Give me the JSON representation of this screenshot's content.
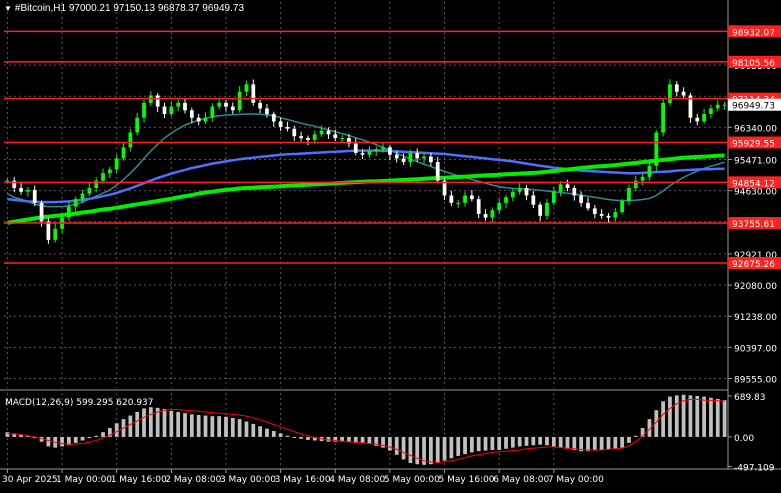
{
  "header": {
    "symbol": "#Bitcoin,H1",
    "ohlc": "97000.21 97150.13 96878.37 96949.73"
  },
  "colors": {
    "background": "#000000",
    "grid": "#5a5a5a",
    "bull": "#00ff00",
    "bear": "#ffffff",
    "level_line": "#ff2020",
    "ma_fast": "#2e8b8b",
    "ma_mid": "#4f6fff",
    "ma_slow": "#00ee00",
    "macd_hist": "#c0c0c0",
    "macd_signal": "#ff0000",
    "axis_text": "#ffffff",
    "current_price_bg": "#ffffff",
    "current_price_text": "#000000"
  },
  "chart_data": {
    "type": "candlestick",
    "title": "#Bitcoin,H1",
    "ylim": [
      89300,
      99400
    ],
    "y_ticks": [
      "98021.00",
      "97180.00",
      "96340.00",
      "95471.00",
      "94630.00",
      "93790.00",
      "92921.00",
      "92080.00",
      "91238.00",
      "90397.00",
      "89555.00"
    ],
    "x_labels": [
      "30 Apr 2025",
      "1 May 00:00",
      "1 May 16:00",
      "2 May 08:00",
      "3 May 00:00",
      "3 May 16:00",
      "4 May 08:00",
      "5 May 00:00",
      "5 May 16:00",
      "6 May 08:00",
      "7 May 00:00"
    ],
    "x_label_index": [
      0,
      8,
      16,
      24,
      32,
      40,
      48,
      56,
      64,
      72,
      80
    ],
    "levels": [
      {
        "label": "98932.07",
        "value": 98932.07
      },
      {
        "label": "98105.56",
        "value": 98105.56
      },
      {
        "label": "97114.34",
        "value": 97114.34
      },
      {
        "label": "95929.55",
        "value": 95929.55
      },
      {
        "label": "94854.12",
        "value": 94854.12
      },
      {
        "label": "93755.61",
        "value": 93755.61
      },
      {
        "label": "92675.26",
        "value": 92675.26
      }
    ],
    "current_price": {
      "label": "96949.73",
      "value": 96949.73
    },
    "closes": [
      94900,
      94700,
      94600,
      94650,
      94300,
      93800,
      93300,
      93600,
      93900,
      94200,
      94400,
      94550,
      94700,
      94900,
      95100,
      95200,
      95500,
      95800,
      96200,
      96600,
      97000,
      97200,
      96900,
      96700,
      96900,
      97000,
      96800,
      96600,
      96500,
      96600,
      96900,
      97000,
      96900,
      96800,
      97300,
      97500,
      97000,
      96850,
      96700,
      96500,
      96350,
      96300,
      96100,
      96050,
      96000,
      96150,
      96250,
      96150,
      96050,
      96050,
      95900,
      95650,
      95600,
      95700,
      95750,
      95800,
      95600,
      95500,
      95400,
      95650,
      95500,
      95550,
      95400,
      94900,
      94500,
      94300,
      94300,
      94500,
      94400,
      94000,
      93900,
      94100,
      94300,
      94450,
      94600,
      94700,
      94500,
      94250,
      93950,
      94300,
      94600,
      94800,
      94700,
      94500,
      94300,
      94150,
      94000,
      93950,
      93900,
      94050,
      94350,
      94700,
      94900,
      95000,
      95300,
      96200,
      97000,
      97500,
      97300,
      97200,
      96600,
      96500,
      96700,
      96850,
      96950,
      96950
    ],
    "ma_fast": [
      94550,
      94450,
      94400,
      94330,
      94270,
      94220,
      94200,
      94200,
      94200,
      94220,
      94260,
      94320,
      94400,
      94480,
      94560,
      94650,
      94780,
      94930,
      95100,
      95290,
      95500,
      95700,
      95880,
      96050,
      96180,
      96300,
      96400,
      96470,
      96530,
      96580,
      96620,
      96650,
      96670,
      96680,
      96690,
      96700,
      96700,
      96690,
      96680,
      96650,
      96600,
      96550,
      96500,
      96450,
      96410,
      96370,
      96320,
      96270,
      96220,
      96170,
      96120,
      96060,
      96000,
      95940,
      95870,
      95800,
      95720,
      95640,
      95560,
      95480,
      95410,
      95340,
      95280,
      95210,
      95150,
      95090,
      95030,
      94980,
      94930,
      94880,
      94830,
      94780,
      94740,
      94710,
      94690,
      94680,
      94670,
      94660,
      94640,
      94620,
      94600,
      94580,
      94560,
      94540,
      94510,
      94480,
      94450,
      94420,
      94390,
      94370,
      94360,
      94360,
      94370,
      94390,
      94420,
      94500,
      94620,
      94760,
      94880,
      94990,
      95080,
      95160,
      95230,
      95290,
      95340,
      95400
    ],
    "ma_mid": [
      94400,
      94380,
      94360,
      94340,
      94330,
      94320,
      94320,
      94320,
      94330,
      94340,
      94360,
      94380,
      94410,
      94440,
      94480,
      94520,
      94570,
      94630,
      94690,
      94760,
      94830,
      94900,
      94970,
      95030,
      95090,
      95140,
      95190,
      95240,
      95280,
      95320,
      95360,
      95390,
      95420,
      95450,
      95480,
      95500,
      95520,
      95540,
      95560,
      95580,
      95600,
      95610,
      95620,
      95630,
      95640,
      95650,
      95660,
      95670,
      95680,
      95690,
      95700,
      95710,
      95710,
      95710,
      95710,
      95710,
      95700,
      95690,
      95680,
      95670,
      95660,
      95650,
      95640,
      95630,
      95620,
      95600,
      95580,
      95560,
      95540,
      95520,
      95500,
      95480,
      95460,
      95440,
      95420,
      95390,
      95360,
      95330,
      95300,
      95280,
      95250,
      95230,
      95210,
      95190,
      95170,
      95160,
      95150,
      95140,
      95130,
      95120,
      95110,
      95100,
      95100,
      95110,
      95120,
      95130,
      95140,
      95150,
      95170,
      95180,
      95190,
      95200,
      95210,
      95210,
      95220,
      95220
    ],
    "ma_slow": [
      93760,
      93790,
      93820,
      93850,
      93880,
      93910,
      93930,
      93950,
      93970,
      93990,
      94010,
      94040,
      94060,
      94090,
      94120,
      94140,
      94170,
      94200,
      94230,
      94260,
      94290,
      94320,
      94350,
      94380,
      94410,
      94450,
      94480,
      94510,
      94550,
      94580,
      94600,
      94630,
      94650,
      94670,
      94690,
      94700,
      94710,
      94720,
      94730,
      94740,
      94750,
      94760,
      94770,
      94780,
      94790,
      94800,
      94810,
      94820,
      94830,
      94840,
      94850,
      94860,
      94870,
      94880,
      94880,
      94890,
      94900,
      94910,
      94920,
      94930,
      94940,
      94950,
      94960,
      94970,
      94980,
      94990,
      95000,
      95010,
      95020,
      95030,
      95040,
      95050,
      95060,
      95070,
      95080,
      95090,
      95100,
      95110,
      95120,
      95140,
      95160,
      95180,
      95200,
      95220,
      95240,
      95260,
      95280,
      95290,
      95300,
      95320,
      95340,
      95360,
      95380,
      95400,
      95420,
      95440,
      95460,
      95480,
      95500,
      95520,
      95530,
      95540,
      95550,
      95560,
      95570,
      95580
    ],
    "macd": {
      "label": "MACD(12,26,9) 599.295 620.937",
      "ylim": [
        -540,
        740
      ],
      "y_ticks": [
        "689.83",
        "0.00",
        "-497.109"
      ],
      "histogram": [
        80,
        60,
        40,
        20,
        -20,
        -80,
        -160,
        -180,
        -160,
        -140,
        -100,
        -60,
        -20,
        20,
        80,
        150,
        230,
        300,
        360,
        420,
        480,
        500,
        490,
        470,
        440,
        420,
        400,
        380,
        370,
        360,
        350,
        350,
        340,
        320,
        300,
        260,
        220,
        180,
        140,
        100,
        60,
        20,
        -10,
        -30,
        -50,
        -60,
        -70,
        -80,
        -80,
        -80,
        -90,
        -100,
        -110,
        -120,
        -150,
        -180,
        -230,
        -300,
        -380,
        -440,
        -460,
        -470,
        -460,
        -440,
        -400,
        -360,
        -320,
        -290,
        -260,
        -240,
        -230,
        -220,
        -220,
        -200,
        -180,
        -160,
        -150,
        -140,
        -130,
        -140,
        -160,
        -180,
        -200,
        -220,
        -240,
        -240,
        -230,
        -220,
        -210,
        -200,
        -180,
        -100,
        20,
        150,
        300,
        450,
        600,
        680,
        700,
        710,
        700,
        690,
        680,
        660,
        640,
        620
      ],
      "signal": [
        60,
        50,
        40,
        20,
        0,
        -30,
        -60,
        -90,
        -110,
        -120,
        -120,
        -110,
        -90,
        -60,
        -20,
        30,
        90,
        150,
        210,
        270,
        330,
        380,
        420,
        450,
        460,
        460,
        450,
        440,
        430,
        420,
        410,
        400,
        390,
        380,
        370,
        350,
        320,
        290,
        250,
        210,
        170,
        130,
        90,
        50,
        20,
        -10,
        -30,
        -50,
        -60,
        -70,
        -80,
        -90,
        -100,
        -110,
        -120,
        -140,
        -170,
        -210,
        -260,
        -310,
        -360,
        -400,
        -420,
        -430,
        -420,
        -400,
        -380,
        -350,
        -320,
        -300,
        -280,
        -260,
        -250,
        -240,
        -230,
        -220,
        -200,
        -190,
        -180,
        -170,
        -170,
        -180,
        -190,
        -200,
        -210,
        -220,
        -220,
        -220,
        -210,
        -200,
        -190,
        -150,
        -80,
        20,
        130,
        250,
        380,
        480,
        560,
        610,
        630,
        630,
        620,
        615,
        610,
        605
      ]
    }
  }
}
